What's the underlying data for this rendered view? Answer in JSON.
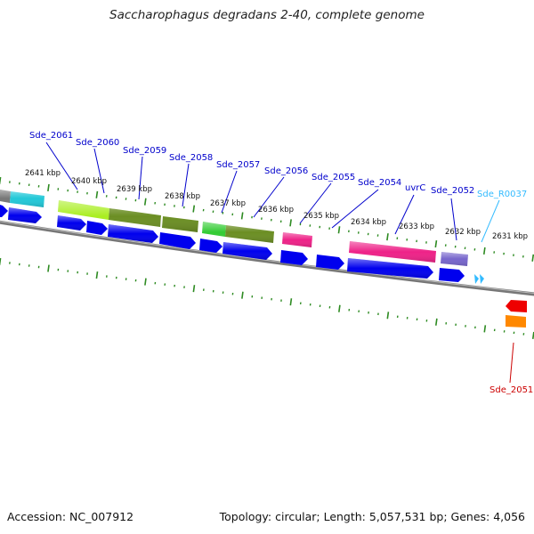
{
  "header": {
    "title": "Saccharophagus degradans 2-40, complete genome"
  },
  "footer": {
    "accession": "Accession: NC_007912",
    "summary": "Topology: circular; Length: 5,057,531 bp; Genes: 4,056"
  },
  "ticks": [
    {
      "label": "2641 kbp"
    },
    {
      "label": "2640 kbp"
    },
    {
      "label": "2639 kbp"
    },
    {
      "label": "2638 kbp"
    },
    {
      "label": "2637 kbp"
    },
    {
      "label": "2636 kbp"
    },
    {
      "label": "2635 kbp"
    },
    {
      "label": "2634 kbp"
    },
    {
      "label": "2633 kbp"
    },
    {
      "label": "2632 kbp"
    },
    {
      "label": "2631 kbp"
    }
  ],
  "gene_labels": [
    {
      "name": "Sde_2061",
      "color": "#0000cc"
    },
    {
      "name": "Sde_2060",
      "color": "#0000cc"
    },
    {
      "name": "Sde_2059",
      "color": "#0000cc"
    },
    {
      "name": "Sde_2058",
      "color": "#0000cc"
    },
    {
      "name": "Sde_2057",
      "color": "#0000cc"
    },
    {
      "name": "Sde_2056",
      "color": "#0000cc"
    },
    {
      "name": "Sde_2055",
      "color": "#0000cc"
    },
    {
      "name": "Sde_2054",
      "color": "#0000cc"
    },
    {
      "name": "uvrC",
      "color": "#0000cc"
    },
    {
      "name": "Sde_2052",
      "color": "#0000cc"
    },
    {
      "name": "Sde_R0037",
      "color": "#33bbff"
    },
    {
      "name": "Sde_2051",
      "color": "#cc0000"
    }
  ],
  "colors": {
    "backbone": "#808080",
    "tick": "#2e8b22",
    "cds": "#0000ee",
    "cyan_feature": "#22c8d8",
    "lime_feature": "#aaee22",
    "olive_feature": "#6b8e23",
    "green_feature": "#33cc33",
    "magenta_feature": "#ee2288",
    "purple_feature": "#7766cc",
    "grey_feature": "#777777",
    "red_feature": "#ee0000",
    "orange_feature": "#ff8800",
    "rna_feature": "#33bbff"
  }
}
